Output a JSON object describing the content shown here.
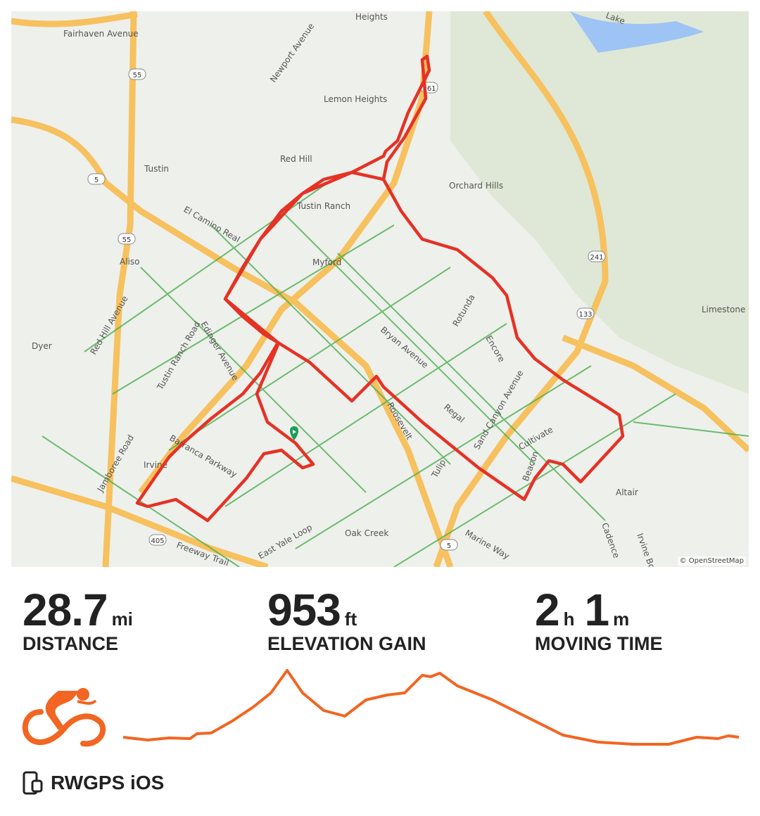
{
  "map": {
    "attribution": "© OpenStreetMap",
    "route_color": "#e53225",
    "start_marker_color": "#1a9e5a",
    "labels": [
      "Fairhaven Avenue",
      "Heights",
      "Newport Avenue",
      "Lemon Heights",
      "Red Hill",
      "Tustin",
      "Tustin Ranch",
      "Orchard Hills",
      "El Camino Real",
      "Myford",
      "Aliso",
      "Limestone Canyon",
      "Red Hill Avenue",
      "Edinger Avenue",
      "Bryan Avenue",
      "Rotunda",
      "Encore",
      "Tustin Ranch Road",
      "Dyer",
      "Roosevelt",
      "Regal",
      "Sand Canyon Avenue",
      "Cultivate",
      "Beacon",
      "Barranca Parkway",
      "Jamboree Road",
      "Irvine",
      "Tulip",
      "Oak Creek",
      "East Yale Loop",
      "Freeway Trail",
      "Marine Way",
      "Altair",
      "Cadence",
      "Irvine Bo",
      "Lake"
    ],
    "shields": [
      "55",
      "5",
      "55",
      "261",
      "241",
      "133",
      "5",
      "405"
    ]
  },
  "stats": {
    "distance": {
      "value": "28.7",
      "unit": "mi",
      "label": "DISTANCE"
    },
    "elevation": {
      "value": "953",
      "unit": "ft",
      "label": "ELEVATION GAIN"
    },
    "moving_time": {
      "hours": "2",
      "hours_unit": "h",
      "minutes": "1",
      "minutes_unit": "m",
      "label": "MOVING TIME"
    }
  },
  "activity_icon": "cycling-icon",
  "accent_color": "#f26522",
  "source": {
    "icon": "phone-watch-icon",
    "label": "RWGPS iOS"
  }
}
